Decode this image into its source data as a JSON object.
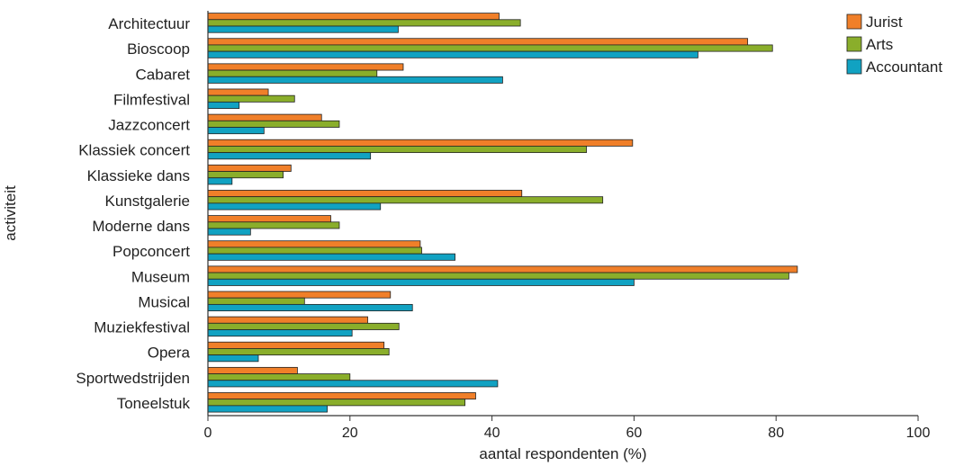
{
  "chart_data": {
    "type": "bar",
    "orientation": "horizontal",
    "xlabel": "aantal respondenten (%)",
    "ylabel": "activiteit",
    "xlim": [
      0,
      100
    ],
    "xticks": [
      0,
      20,
      40,
      60,
      80,
      100
    ],
    "grid": false,
    "legend_position": "top-right",
    "categories": [
      "Architectuur",
      "Bioscoop",
      "Cabaret",
      "Filmfestival",
      "Jazzconcert",
      "Klassiek concert",
      "Klassieke dans",
      "Kunstgalerie",
      "Moderne dans",
      "Popconcert",
      "Museum",
      "Musical",
      "Muziekfestival",
      "Opera",
      "Sportwedstrijden",
      "Toneelstuk"
    ],
    "series": [
      {
        "name": "Jurist",
        "color": "#F07F29",
        "values": [
          41,
          76,
          27.5,
          8.5,
          16,
          59.8,
          11.7,
          44.2,
          17.3,
          29.9,
          83,
          25.7,
          22.5,
          24.8,
          12.6,
          37.7
        ]
      },
      {
        "name": "Arts",
        "color": "#8AAE2B",
        "values": [
          44,
          79.5,
          23.8,
          12.2,
          18.5,
          53.3,
          10.6,
          55.6,
          18.5,
          30.1,
          81.8,
          13.6,
          26.9,
          25.5,
          20,
          36.2
        ]
      },
      {
        "name": "Accountant",
        "color": "#11A2C2",
        "values": [
          26.8,
          69,
          41.5,
          4.4,
          7.9,
          22.9,
          3.4,
          24.3,
          6,
          34.8,
          60,
          28.8,
          20.3,
          7.1,
          40.8,
          16.8
        ]
      }
    ]
  }
}
